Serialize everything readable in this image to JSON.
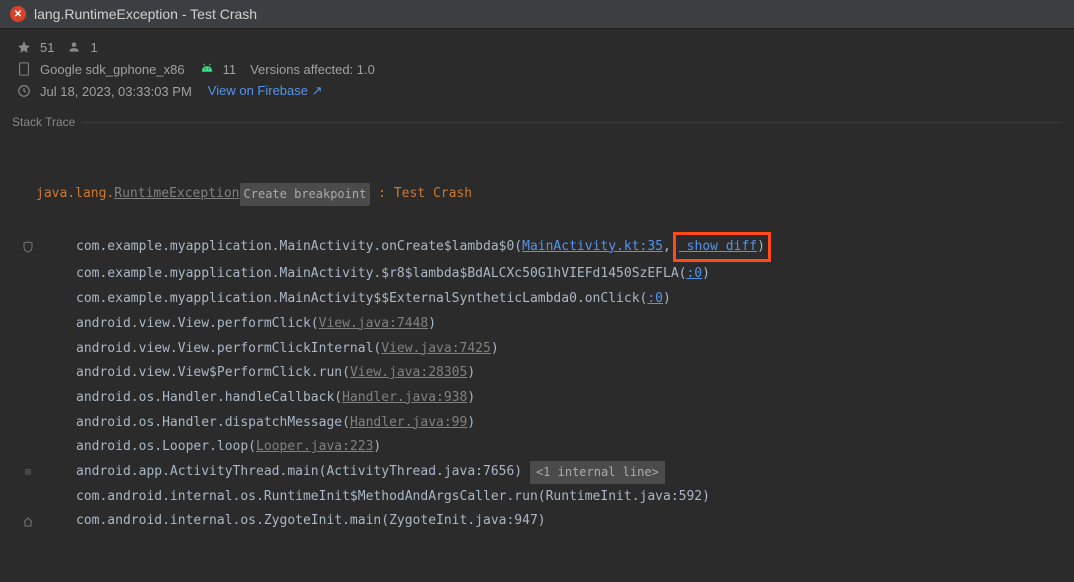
{
  "title": "lang.RuntimeException - Test Crash",
  "meta": {
    "crash_count": "51",
    "user_count": "1",
    "device": "Google sdk_gphone_x86",
    "api_level": "11",
    "versions_label": "Versions affected: 1.0",
    "timestamp": "Jul 18, 2023, 03:33:03 PM",
    "firebase_link": "View on Firebase ↗"
  },
  "stacktrace_label": "Stack Trace",
  "header": {
    "prefix": "java.lang.",
    "exception": "RuntimeException",
    "breakpoint_label": "Create breakpoint",
    "sep": " : ",
    "message": "Test Crash"
  },
  "frames": [
    {
      "gutter": "shield",
      "text": "com.example.myapplication.MainActivity.onCreate$lambda$0(",
      "link": "MainActivity.kt:35",
      "link_color": "blue",
      "tail_before_highlight": ",",
      "highlight_link": "show diff",
      "tail": ")"
    },
    {
      "text": "com.example.myapplication.MainActivity.$r8$lambda$BdALCXc50G1hVIEFd1450SzEFLA(",
      "link": ":0",
      "link_color": "blue",
      "tail": ")"
    },
    {
      "text": "com.example.myapplication.MainActivity$$ExternalSyntheticLambda0.onClick(",
      "link": ":0",
      "link_color": "blue",
      "tail": ")"
    },
    {
      "text": "android.view.View.performClick(",
      "link": "View.java:7448",
      "link_color": "gray",
      "tail": ")"
    },
    {
      "text": "android.view.View.performClickInternal(",
      "link": "View.java:7425",
      "link_color": "gray",
      "tail": ")"
    },
    {
      "text": "android.view.View$PerformClick.run(",
      "link": "View.java:28305",
      "link_color": "gray",
      "tail": ")"
    },
    {
      "text": "android.os.Handler.handleCallback(",
      "link": "Handler.java:938",
      "link_color": "gray",
      "tail": ")"
    },
    {
      "text": "android.os.Handler.dispatchMessage(",
      "link": "Handler.java:99",
      "link_color": "gray",
      "tail": ")"
    },
    {
      "text": "android.os.Looper.loop(",
      "link": "Looper.java:223",
      "link_color": "gray",
      "tail": ")"
    },
    {
      "gutter": "plus",
      "text": "android.app.ActivityThread.main(ActivityThread.java:7656) ",
      "internal": "<1 internal line>"
    },
    {
      "text": "com.android.internal.os.RuntimeInit$MethodAndArgsCaller.run(RuntimeInit.java:592)"
    },
    {
      "gutter": "home",
      "text": "com.android.internal.os.ZygoteInit.main(ZygoteInit.java:947)"
    }
  ],
  "colors": {
    "bg": "#2b2b2b",
    "titlebar_bg": "#3c3f41",
    "error_icon": "#d9422a",
    "link": "#5394ec",
    "highlight_border": "#ff4a1a",
    "pkg": "#a9b7c6",
    "gray": "#808080"
  }
}
